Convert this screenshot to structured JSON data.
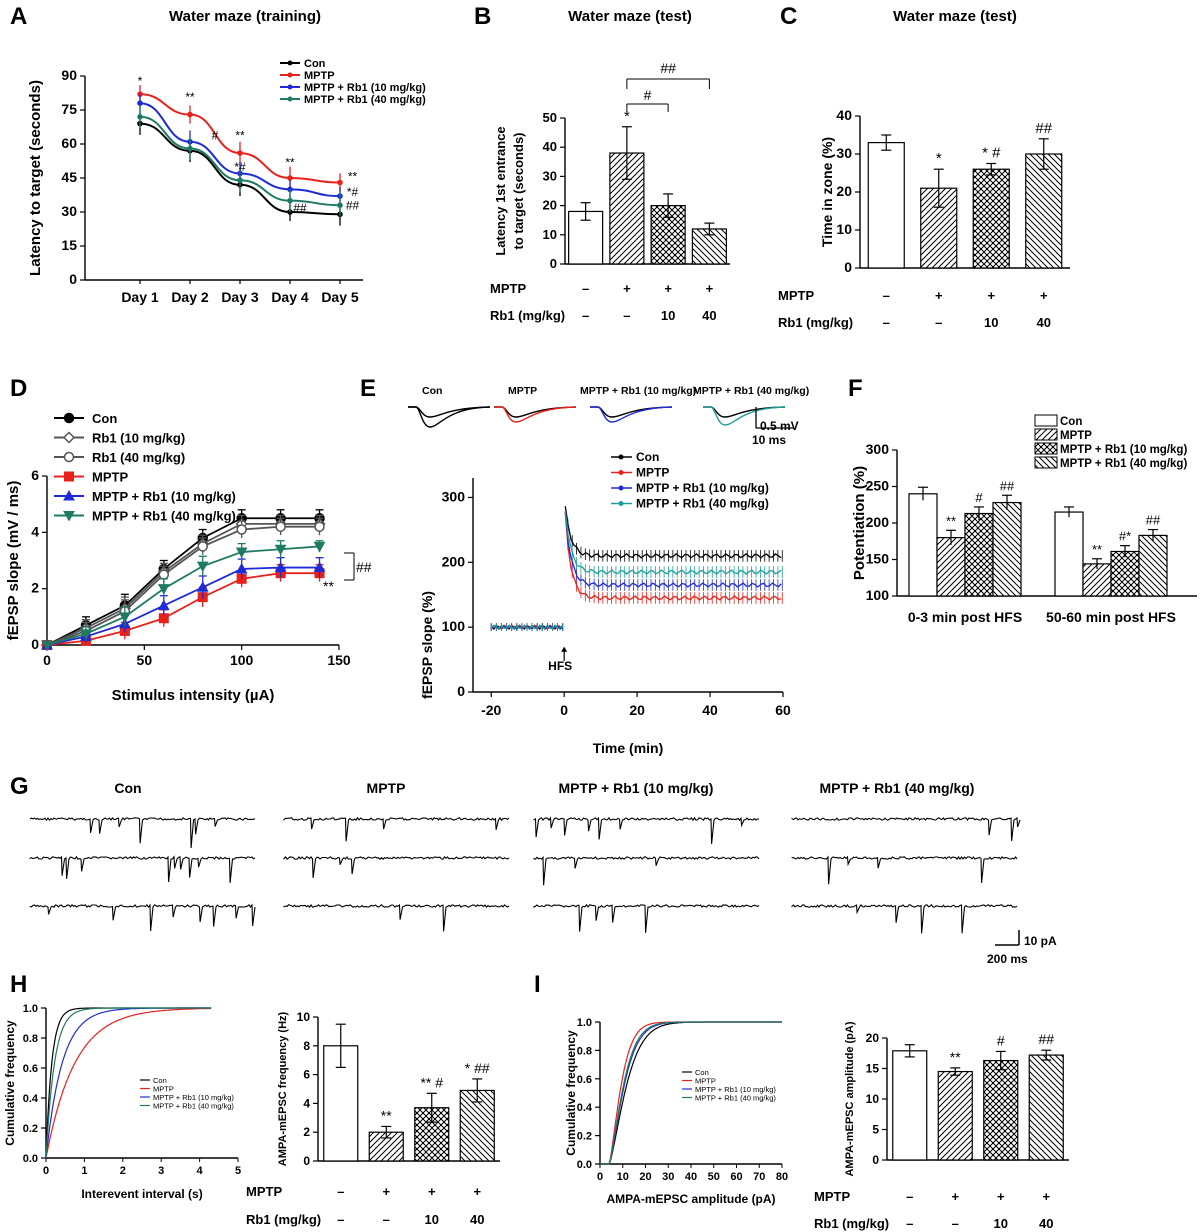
{
  "colors": {
    "con": "#000000",
    "mptp": "#e8211b",
    "rb10": "#1f2bd6",
    "rb40": "#1f7a63"
  },
  "panel_letters": [
    "A",
    "B",
    "C",
    "D",
    "E",
    "F",
    "G",
    "H",
    "I"
  ],
  "chart_data": [
    {
      "id": "A",
      "type": "line",
      "title": "Water maze (training)",
      "ylabel": "Latency to target (seconds)",
      "ylim": [
        0,
        90
      ],
      "yticks": [
        0,
        15,
        30,
        45,
        60,
        75,
        90
      ],
      "categories": [
        "Day 1",
        "Day 2",
        "Day 3",
        "Day 4",
        "Day 5"
      ],
      "legend": [
        "Con",
        "MPTP",
        "MPTP + Rb1 (10 mg/kg)",
        "MPTP + Rb1 (40 mg/kg)"
      ],
      "series": [
        {
          "name": "Con",
          "color": "#000000",
          "values": [
            69,
            57,
            42,
            30,
            29
          ],
          "err": [
            5,
            5,
            5,
            4,
            5
          ]
        },
        {
          "name": "MPTP",
          "color": "#e8211b",
          "values": [
            82,
            73,
            56,
            45,
            43
          ],
          "err": [
            4,
            4,
            5,
            5,
            4
          ]
        },
        {
          "name": "MPTP + Rb1 (10 mg/kg)",
          "color": "#1f2bd6",
          "values": [
            78,
            61,
            47,
            40,
            37
          ],
          "err": [
            4,
            5,
            5,
            4,
            4
          ]
        },
        {
          "name": "MPTP + Rb1 (40 mg/kg)",
          "color": "#1f7a63",
          "values": [
            72,
            58,
            44,
            35,
            33
          ],
          "err": [
            5,
            5,
            5,
            5,
            5
          ]
        }
      ],
      "annotations": [
        {
          "text": "*",
          "xi": 0,
          "y": 86
        },
        {
          "text": "**",
          "xi": 1,
          "y": 79
        },
        {
          "text": "#",
          "xi": 1.5,
          "y": 62
        },
        {
          "text": "**",
          "xi": 2,
          "y": 62
        },
        {
          "text": "*#",
          "xi": 2,
          "y": 48
        },
        {
          "text": "**",
          "xi": 3,
          "y": 50
        },
        {
          "text": "##",
          "xi": 3.2,
          "y": 30
        },
        {
          "text": "**",
          "xi": 4.25,
          "y": 44
        },
        {
          "text": "*#",
          "xi": 4.25,
          "y": 37
        },
        {
          "text": "##",
          "xi": 4.25,
          "y": 31
        }
      ]
    },
    {
      "id": "B",
      "type": "bar",
      "title": "Water maze (test)",
      "ylabel": "Latency 1st entrance to target (seconds)",
      "ylim": [
        0,
        50
      ],
      "yticks": [
        0,
        10,
        20,
        30,
        40,
        50
      ],
      "values": [
        18,
        38,
        20,
        12
      ],
      "err": [
        3,
        9,
        4,
        2
      ],
      "row_labels": [
        "MPTP",
        "Rb1 (mg/kg)"
      ],
      "mptp": [
        "–",
        "+",
        "+",
        "+"
      ],
      "rb1": [
        "–",
        "–",
        "10",
        "40"
      ],
      "stars": [
        "",
        "*",
        "",
        ""
      ],
      "brackets": [
        "#",
        "##"
      ]
    },
    {
      "id": "C",
      "type": "bar",
      "title": "Water maze (test)",
      "ylabel": "Time in zone (%)",
      "ylim": [
        0,
        40
      ],
      "yticks": [
        0,
        10,
        20,
        30,
        40
      ],
      "values": [
        33,
        21,
        26,
        30
      ],
      "err": [
        2,
        5,
        1.5,
        4
      ],
      "row_labels": [
        "MPTP",
        "Rb1 (mg/kg)"
      ],
      "mptp": [
        "–",
        "+",
        "+",
        "+"
      ],
      "rb1": [
        "–",
        "–",
        "10",
        "40"
      ],
      "stars": [
        "",
        "*",
        "* #",
        "##"
      ]
    },
    {
      "id": "D",
      "type": "line",
      "xlabel": "Stimulus intensity (µA)",
      "ylabel": "fEPSP slope (mV / ms)",
      "xlim": [
        0,
        150
      ],
      "xticks": [
        0,
        50,
        100,
        150
      ],
      "ylim": [
        0,
        6
      ],
      "yticks": [
        0,
        2,
        4,
        6
      ],
      "x": [
        0,
        20,
        40,
        60,
        80,
        100,
        120,
        140
      ],
      "legend": [
        "Con",
        "Rb1 (10 mg/kg)",
        "Rb1 (40 mg/kg)",
        "MPTP",
        "MPTP + Rb1 (10 mg/kg)",
        "MPTP + Rb1 (40 mg/kg)"
      ],
      "series": [
        {
          "name": "Con",
          "color": "#000000",
          "marker": "circle",
          "values": [
            0,
            0.7,
            1.4,
            2.7,
            3.8,
            4.5,
            4.5,
            4.5
          ],
          "err": [
            0.05,
            0.3,
            0.4,
            0.3,
            0.3,
            0.3,
            0.3,
            0.3
          ]
        },
        {
          "name": "Rb1 (10 mg/kg)",
          "color": "#555555",
          "marker": "diamond-open",
          "values": [
            0,
            0.6,
            1.3,
            2.6,
            3.6,
            4.3,
            4.3,
            4.3
          ],
          "err": [
            0.05,
            0.3,
            0.4,
            0.3,
            0.3,
            0.3,
            0.3,
            0.3
          ]
        },
        {
          "name": "Rb1 (40 mg/kg)",
          "color": "#555555",
          "marker": "circle-open",
          "values": [
            0,
            0.5,
            1.2,
            2.5,
            3.5,
            4.1,
            4.2,
            4.2
          ],
          "err": [
            0.05,
            0.3,
            0.4,
            0.3,
            0.3,
            0.3,
            0.3,
            0.3
          ]
        },
        {
          "name": "MPTP",
          "color": "#e8211b",
          "marker": "square",
          "values": [
            0,
            0.15,
            0.5,
            0.95,
            1.7,
            2.35,
            2.55,
            2.55
          ],
          "err": [
            0.05,
            0.15,
            0.3,
            0.3,
            0.35,
            0.3,
            0.3,
            0.3
          ]
        },
        {
          "name": "MPTP + Rb1 (10 mg/kg)",
          "color": "#1f2bd6",
          "marker": "triangle",
          "values": [
            0,
            0.3,
            0.75,
            1.4,
            2.05,
            2.7,
            2.75,
            2.75
          ],
          "err": [
            0.05,
            0.2,
            0.3,
            0.35,
            0.4,
            0.35,
            0.35,
            0.35
          ]
        },
        {
          "name": "MPTP + Rb1 (40 mg/kg)",
          "color": "#1f7a63",
          "marker": "triangle-down",
          "values": [
            0,
            0.4,
            1.0,
            2.0,
            2.8,
            3.3,
            3.4,
            3.5
          ],
          "err": [
            0.05,
            0.25,
            0.35,
            0.35,
            0.35,
            0.3,
            0.3,
            0.2
          ]
        }
      ],
      "marks": [
        "**",
        "##"
      ]
    },
    {
      "id": "E",
      "type": "line",
      "xlabel": "Time (min)",
      "ylabel": "fEPSP slope (%)",
      "xlim": [
        -25,
        60
      ],
      "xticks": [
        -20,
        0,
        20,
        40,
        60
      ],
      "ylim": [
        0,
        330
      ],
      "yticks": [
        0,
        100,
        200,
        300
      ],
      "trace_labels": [
        "Con",
        "MPTP",
        "MPTP + Rb1 (10 mg/kg)",
        "MPTP + Rb1 (40 mg/kg)"
      ],
      "scalebar": [
        "0.5 mV",
        "10 ms"
      ],
      "arrow_label": "HFS",
      "legend": [
        "Con",
        "MPTP",
        "MPTP + Rb1 (10 mg/kg)",
        "MPTP + Rb1 (40 mg/kg)"
      ],
      "series": [
        {
          "name": "Con",
          "color": "#000000",
          "baseline": 100,
          "peak": 300,
          "plateau": 210
        },
        {
          "name": "MPTP",
          "color": "#e8211b",
          "baseline": 100,
          "peak": 300,
          "plateau": 145
        },
        {
          "name": "MPTP + Rb1 (10 mg/kg)",
          "color": "#1f2bd6",
          "baseline": 100,
          "peak": 300,
          "plateau": 165
        },
        {
          "name": "MPTP + Rb1 (40 mg/kg)",
          "color": "#1f9f9a",
          "baseline": 100,
          "peak": 300,
          "plateau": 185
        }
      ]
    },
    {
      "id": "F",
      "type": "bar",
      "ylabel": "Potentiation (%)",
      "ylim": [
        100,
        300
      ],
      "yticks": [
        100,
        150,
        200,
        250,
        300
      ],
      "categories": [
        "0-3 min post HFS",
        "50-60 min post HFS"
      ],
      "legend": [
        "Con",
        "MPTP",
        "MPTP + Rb1 (10 mg/kg)",
        "MPTP + Rb1 (40 mg/kg)"
      ],
      "series": [
        {
          "name": "Con",
          "values": [
            240,
            215
          ],
          "err": [
            9,
            7
          ]
        },
        {
          "name": "MPTP",
          "values": [
            180,
            144
          ],
          "err": [
            10,
            7
          ]
        },
        {
          "name": "MPTP + Rb1 (10 mg/kg)",
          "values": [
            213,
            161
          ],
          "err": [
            9,
            8
          ]
        },
        {
          "name": "MPTP + Rb1 (40 mg/kg)",
          "values": [
            228,
            183
          ],
          "err": [
            10,
            8
          ]
        }
      ],
      "stars": [
        [
          "",
          "**",
          "#",
          "##"
        ],
        [
          "",
          "**",
          "#*",
          "##"
        ]
      ]
    },
    {
      "id": "H1",
      "type": "line",
      "xlabel": "Interevent interval (s)",
      "ylabel": "Cumulative frequency",
      "xlim": [
        0,
        5
      ],
      "xticks": [
        0,
        1,
        2,
        3,
        4,
        5
      ],
      "ylim": [
        0,
        1.0
      ],
      "yticks": [
        "0.0",
        "0.2",
        "0.4",
        "0.6",
        "0.8",
        "1.0"
      ],
      "legend": [
        "Con",
        "MPTP",
        "MPTP + Rb1 (10 mg/kg)",
        "MPTP + Rb1 (40 mg/kg)"
      ],
      "series": [
        {
          "name": "Con",
          "color": "#000000",
          "tau": 0.15
        },
        {
          "name": "MPTP",
          "color": "#e8211b",
          "tau": 0.75
        },
        {
          "name": "MPTP + Rb1 (10 mg/kg)",
          "color": "#1f2bd6",
          "tau": 0.42
        },
        {
          "name": "MPTP + Rb1 (40 mg/kg)",
          "color": "#1f7a63",
          "tau": 0.22
        }
      ]
    },
    {
      "id": "H2",
      "type": "bar",
      "ylabel": "AMPA-mEPSC frequency (Hz)",
      "ylim": [
        0,
        10
      ],
      "yticks": [
        0,
        2,
        4,
        6,
        8,
        10
      ],
      "values": [
        8,
        2,
        3.7,
        4.9
      ],
      "err": [
        1.5,
        0.4,
        1.0,
        0.8
      ],
      "row_labels": [
        "MPTP",
        "Rb1 (mg/kg)"
      ],
      "mptp": [
        "–",
        "+",
        "+",
        "+"
      ],
      "rb1": [
        "–",
        "–",
        "10",
        "40"
      ],
      "stars": [
        "",
        "**",
        "** #",
        "* ##"
      ]
    },
    {
      "id": "I1",
      "type": "line",
      "xlabel": "AMPA-mEPSC amplitude (pA)",
      "ylabel": "Cumulative frequency",
      "xlim": [
        0,
        80
      ],
      "xticks": [
        0,
        10,
        20,
        30,
        40,
        50,
        60,
        70,
        80
      ],
      "ylim": [
        0,
        1.0
      ],
      "yticks": [
        "0.0",
        "0.2",
        "0.4",
        "0.6",
        "0.8",
        "1.0"
      ],
      "legend": [
        "Con",
        "MPTP",
        "MPTP + Rb1 (10 mg/kg)",
        "MPTP + Rb1 (40 mg/kg)"
      ],
      "series": [
        {
          "name": "Con",
          "color": "#000000",
          "scale": 9.0
        },
        {
          "name": "MPTP",
          "color": "#e8211b",
          "scale": 6.2
        },
        {
          "name": "MPTP + Rb1 (10 mg/kg)",
          "color": "#1f2bd6",
          "scale": 7.8
        },
        {
          "name": "MPTP + Rb1 (40 mg/kg)",
          "color": "#1f7a63",
          "scale": 7.4
        }
      ]
    },
    {
      "id": "I2",
      "type": "bar",
      "ylabel": "AMPA-mEPSC amplitude (pA)",
      "ylim": [
        0,
        20
      ],
      "yticks": [
        0,
        5,
        10,
        15,
        20
      ],
      "values": [
        17.9,
        14.5,
        16.3,
        17.2
      ],
      "err": [
        1.0,
        0.6,
        1.5,
        0.8
      ],
      "row_labels": [
        "MPTP",
        "Rb1 (mg/kg)"
      ],
      "mptp": [
        "–",
        "+",
        "+",
        "+"
      ],
      "rb1": [
        "–",
        "–",
        "10",
        "40"
      ],
      "stars": [
        "",
        "**",
        "#",
        "##"
      ]
    }
  ],
  "panel_G": {
    "labels": [
      "Con",
      "MPTP",
      "MPTP + Rb1 (10 mg/kg)",
      "MPTP + Rb1 (40 mg/kg)"
    ],
    "scalebar": [
      "10 pA",
      "200 ms"
    ]
  }
}
